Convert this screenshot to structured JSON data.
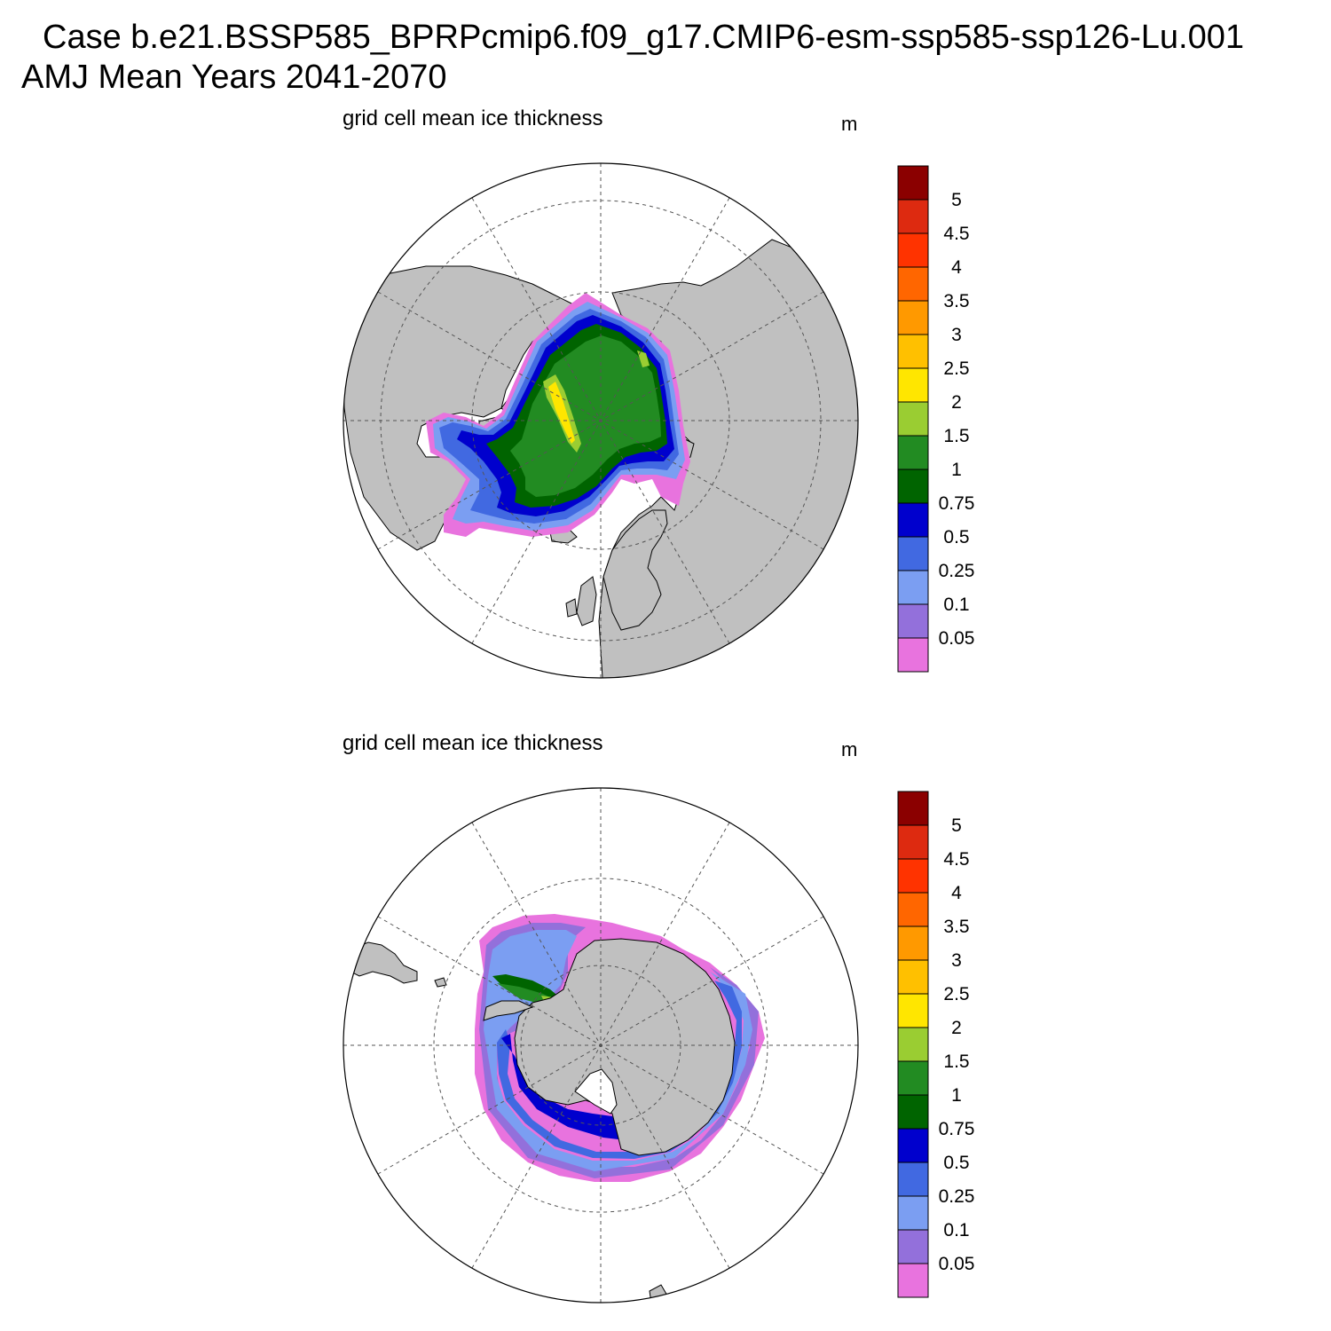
{
  "header": {
    "line1": "Case b.e21.BSSP585_BPRPcmip6.f09_g17.CMIP6-esm-ssp585-ssp126-Lu.001",
    "line2": "AMJ Mean   Years 2041-2070"
  },
  "panels": [
    {
      "id": "north",
      "title": "grid cell mean ice thickness",
      "units": "m",
      "hemisphere": "Arctic"
    },
    {
      "id": "south",
      "title": "grid cell mean ice thickness",
      "units": "m",
      "hemisphere": "Antarctic"
    }
  ],
  "colorbar": {
    "labels": [
      "0.05",
      "0.1",
      "0.25",
      "0.5",
      "0.75",
      "1",
      "1.5",
      "2",
      "2.5",
      "3",
      "3.5",
      "4",
      "4.5",
      "5"
    ],
    "colors": [
      "#e873de",
      "#9370db",
      "#7b9ef2",
      "#4169e1",
      "#0000cd",
      "#006400",
      "#228b22",
      "#9acd32",
      "#ffe600",
      "#ffc000",
      "#ff9900",
      "#ff6600",
      "#ff3300",
      "#dd2a10",
      "#8b0000"
    ]
  },
  "colors": {
    "land": "#c0c0c0",
    "ocean": "#ffffff",
    "coast": "#000000",
    "grid": "#555555"
  }
}
